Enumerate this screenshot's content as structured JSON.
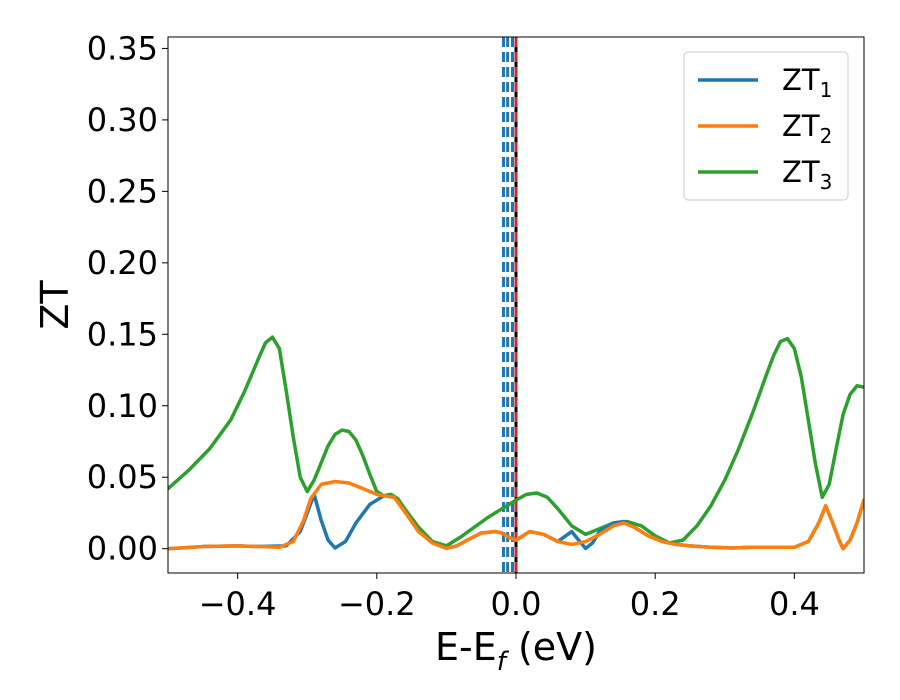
{
  "chart_data": {
    "type": "line",
    "xlabel_main": "E-E",
    "xlabel_sub": "f",
    "xlabel_unit": " (eV)",
    "ylabel": "ZT",
    "xlim": [
      -0.5,
      0.5
    ],
    "ylim": [
      -0.017,
      0.358
    ],
    "x_ticks": [
      -0.4,
      -0.2,
      0.0,
      0.2,
      0.4
    ],
    "x_tick_labels": [
      "−0.4",
      "−0.2",
      "0.0",
      "0.2",
      "0.4"
    ],
    "y_ticks": [
      0.0,
      0.05,
      0.1,
      0.15,
      0.2,
      0.25,
      0.3,
      0.35
    ],
    "y_tick_labels": [
      "0.00",
      "0.05",
      "0.10",
      "0.15",
      "0.20",
      "0.25",
      "0.30",
      "0.35"
    ],
    "grid": false,
    "legend_position": "top-right",
    "vertical_lines": [
      {
        "x": -0.018,
        "style": "dashed",
        "color": "#1f77b4"
      },
      {
        "x": -0.012,
        "style": "dashed",
        "color": "#1f77b4"
      },
      {
        "x": -0.005,
        "style": "dashed",
        "color": "#1f77b4"
      },
      {
        "x": 0.0,
        "style": "solid",
        "color": "#000000"
      },
      {
        "x": 0.0,
        "style": "dashed",
        "color": "#d62728"
      }
    ],
    "series": [
      {
        "name": "ZT",
        "sub": "1",
        "color": "#1f77b4",
        "x": [
          -0.5,
          -0.45,
          -0.4,
          -0.37,
          -0.33,
          -0.31,
          -0.3,
          -0.29,
          -0.28,
          -0.27,
          -0.26,
          -0.245,
          -0.23,
          -0.21,
          -0.19,
          -0.175,
          -0.16,
          -0.14,
          -0.12,
          -0.1,
          -0.085,
          -0.07,
          -0.05,
          -0.03,
          -0.02,
          -0.01,
          0.0,
          0.02,
          0.04,
          0.06,
          0.08,
          0.09,
          0.1,
          0.11,
          0.12,
          0.14,
          0.155,
          0.17,
          0.19,
          0.21,
          0.23,
          0.25,
          0.28,
          0.31,
          0.34,
          0.37,
          0.4,
          0.42,
          0.435,
          0.445,
          0.455,
          0.465,
          0.47,
          0.48,
          0.49,
          0.5
        ],
        "y": [
          0.0,
          0.0015,
          0.002,
          0.0015,
          0.002,
          0.012,
          0.025,
          0.038,
          0.02,
          0.006,
          0.0005,
          0.005,
          0.018,
          0.031,
          0.037,
          0.036,
          0.026,
          0.012,
          0.004,
          0.0003,
          0.002,
          0.006,
          0.011,
          0.012,
          0.011,
          0.008,
          0.006,
          0.012,
          0.01,
          0.005,
          0.012,
          0.006,
          0.0002,
          0.004,
          0.012,
          0.018,
          0.019,
          0.015,
          0.009,
          0.005,
          0.003,
          0.002,
          0.001,
          0.0005,
          0.001,
          0.001,
          0.001,
          0.005,
          0.018,
          0.03,
          0.018,
          0.005,
          0.0,
          0.006,
          0.018,
          0.034
        ]
      },
      {
        "name": "ZT",
        "sub": "2",
        "color": "#ff7f0e",
        "x": [
          -0.5,
          -0.45,
          -0.4,
          -0.37,
          -0.34,
          -0.32,
          -0.305,
          -0.295,
          -0.28,
          -0.26,
          -0.24,
          -0.22,
          -0.2,
          -0.19,
          -0.175,
          -0.16,
          -0.14,
          -0.12,
          -0.1,
          -0.085,
          -0.07,
          -0.05,
          -0.03,
          -0.02,
          -0.01,
          0.0,
          0.02,
          0.04,
          0.06,
          0.08,
          0.1,
          0.12,
          0.14,
          0.155,
          0.17,
          0.19,
          0.21,
          0.23,
          0.25,
          0.28,
          0.31,
          0.34,
          0.37,
          0.4,
          0.42,
          0.435,
          0.445,
          0.455,
          0.465,
          0.47,
          0.48,
          0.49,
          0.5
        ],
        "y": [
          0.0,
          0.0015,
          0.002,
          0.0015,
          0.001,
          0.005,
          0.02,
          0.035,
          0.045,
          0.047,
          0.046,
          0.042,
          0.038,
          0.037,
          0.036,
          0.026,
          0.012,
          0.004,
          0.0003,
          0.002,
          0.006,
          0.011,
          0.012,
          0.011,
          0.008,
          0.006,
          0.012,
          0.01,
          0.005,
          0.003,
          0.005,
          0.01,
          0.016,
          0.018,
          0.015,
          0.009,
          0.005,
          0.003,
          0.002,
          0.001,
          0.0005,
          0.001,
          0.001,
          0.001,
          0.005,
          0.018,
          0.03,
          0.018,
          0.005,
          0.0,
          0.006,
          0.018,
          0.034
        ]
      },
      {
        "name": "ZT",
        "sub": "3",
        "color": "#2ca02c",
        "x": [
          -0.5,
          -0.47,
          -0.44,
          -0.41,
          -0.39,
          -0.37,
          -0.36,
          -0.35,
          -0.34,
          -0.33,
          -0.32,
          -0.31,
          -0.3,
          -0.29,
          -0.28,
          -0.27,
          -0.26,
          -0.25,
          -0.24,
          -0.23,
          -0.22,
          -0.21,
          -0.2,
          -0.19,
          -0.18,
          -0.17,
          -0.16,
          -0.14,
          -0.12,
          -0.1,
          -0.08,
          -0.06,
          -0.04,
          -0.02,
          0.0,
          0.015,
          0.03,
          0.045,
          0.06,
          0.08,
          0.1,
          0.12,
          0.14,
          0.16,
          0.18,
          0.2,
          0.22,
          0.24,
          0.26,
          0.28,
          0.3,
          0.32,
          0.34,
          0.36,
          0.37,
          0.38,
          0.39,
          0.4,
          0.41,
          0.42,
          0.43,
          0.44,
          0.45,
          0.46,
          0.47,
          0.48,
          0.49,
          0.5
        ],
        "y": [
          0.042,
          0.055,
          0.07,
          0.09,
          0.11,
          0.133,
          0.144,
          0.148,
          0.14,
          0.11,
          0.078,
          0.05,
          0.04,
          0.048,
          0.06,
          0.072,
          0.08,
          0.083,
          0.082,
          0.076,
          0.065,
          0.052,
          0.04,
          0.037,
          0.038,
          0.035,
          0.028,
          0.015,
          0.005,
          0.002,
          0.008,
          0.015,
          0.022,
          0.028,
          0.034,
          0.038,
          0.039,
          0.036,
          0.028,
          0.016,
          0.01,
          0.014,
          0.018,
          0.019,
          0.016,
          0.009,
          0.004,
          0.006,
          0.016,
          0.03,
          0.048,
          0.07,
          0.095,
          0.122,
          0.135,
          0.145,
          0.147,
          0.14,
          0.12,
          0.09,
          0.06,
          0.036,
          0.045,
          0.07,
          0.094,
          0.108,
          0.114,
          0.113
        ]
      }
    ]
  }
}
